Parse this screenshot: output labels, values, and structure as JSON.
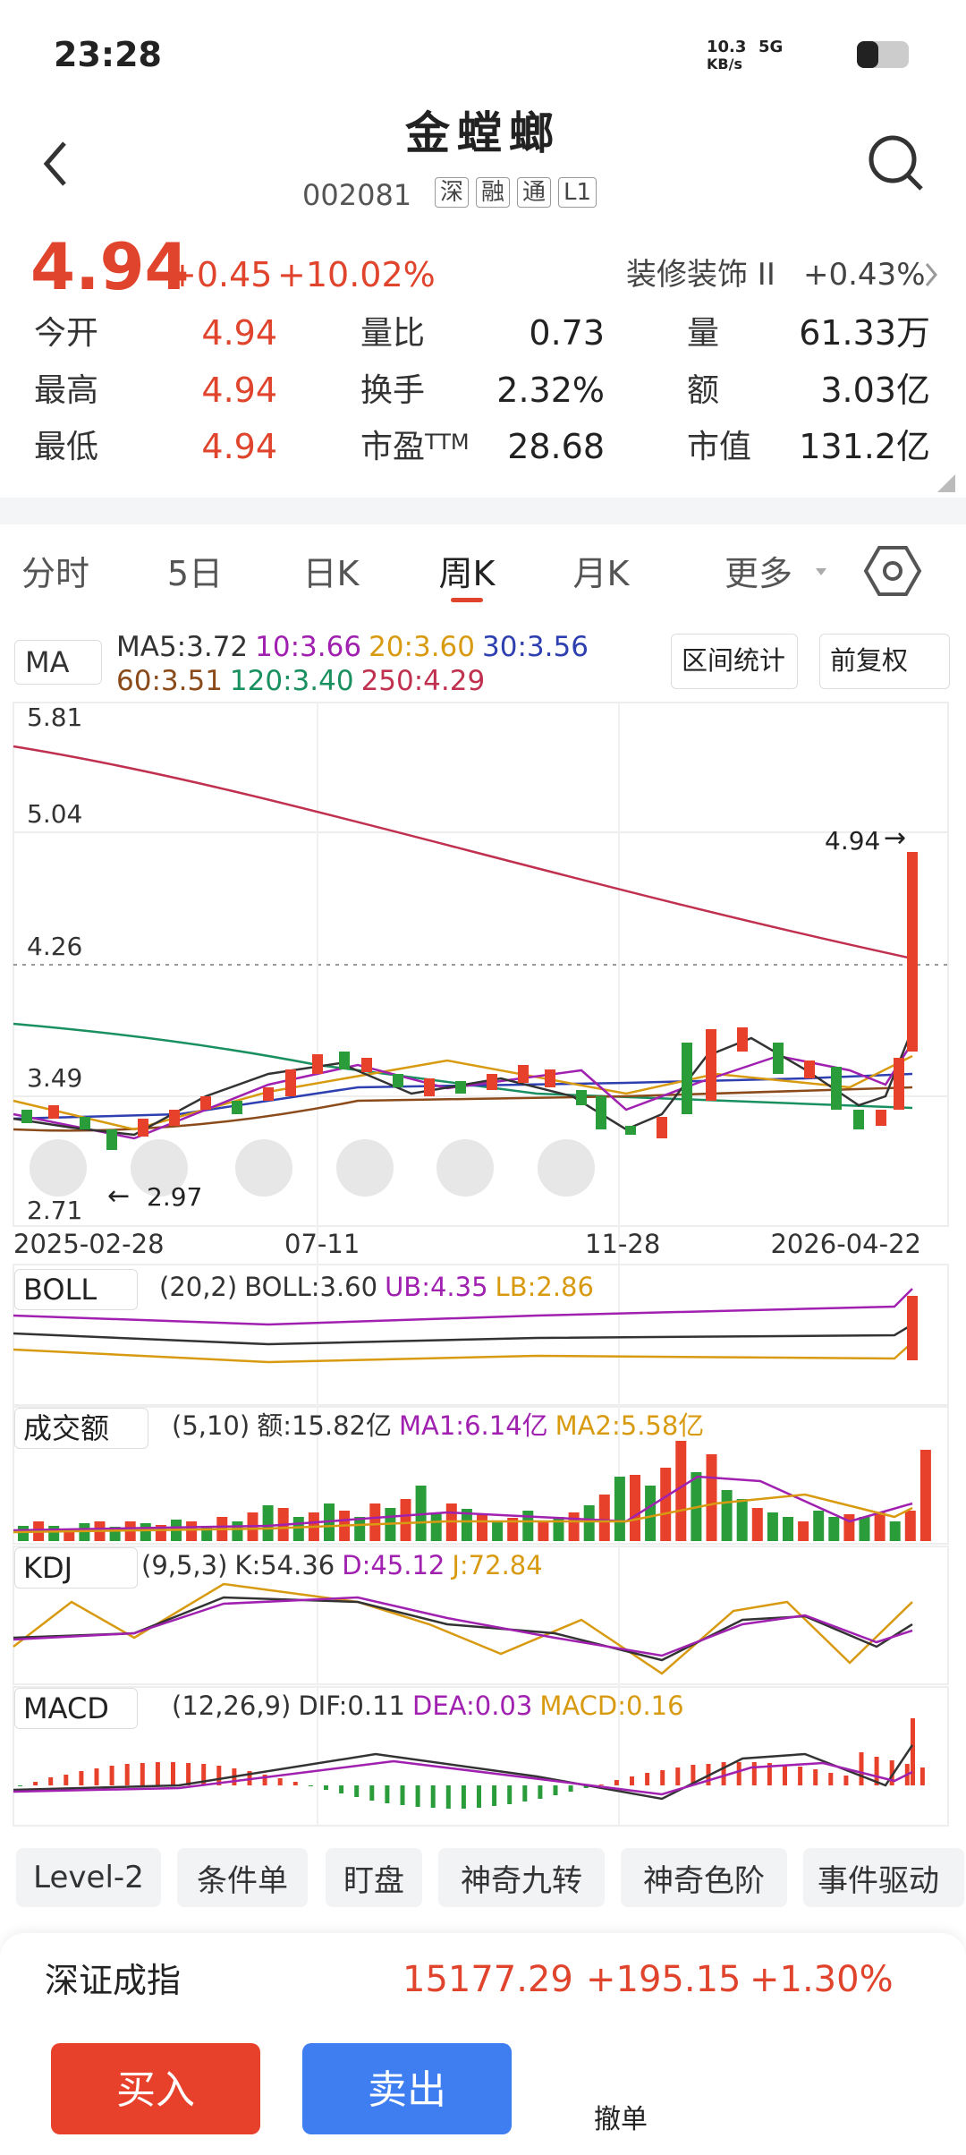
{
  "status": {
    "time": "23:28",
    "net_speed": "10.3",
    "net_unit": "KB/s",
    "signal": "5G"
  },
  "header": {
    "title": "金螳螂",
    "code": "002081",
    "tags": [
      "深",
      "融",
      "通",
      "L1"
    ]
  },
  "quote": {
    "price": "4.94",
    "change": "+0.45",
    "change_pct": "+10.02%",
    "sector": "装修装饰 II",
    "sector_change": "+0.43%",
    "stats": [
      {
        "label": "今开",
        "value": "4.94"
      },
      {
        "label": "量比",
        "value": "0.73"
      },
      {
        "label": "量",
        "value": "61.33万"
      },
      {
        "label": "最高",
        "value": "4.94"
      },
      {
        "label": "换手",
        "value": "2.32%"
      },
      {
        "label": "额",
        "value": "3.03亿"
      },
      {
        "label": "最低",
        "value": "4.94"
      },
      {
        "label": "市盈",
        "label_sup": "TTM",
        "value": "28.68"
      },
      {
        "label": "市值",
        "value": "131.2亿"
      }
    ]
  },
  "tabs": {
    "items": [
      "分时",
      "5日",
      "日K",
      "周K",
      "月K",
      "更多"
    ],
    "selected": 3
  },
  "ma": {
    "selector": "MA",
    "items": [
      {
        "text": "MA5:3.72",
        "color": "#333333"
      },
      {
        "text": "10:3.66",
        "color": "#a020b0"
      },
      {
        "text": "20:3.60",
        "color": "#d89a10"
      },
      {
        "text": "30:3.56",
        "color": "#2e3fb0"
      },
      {
        "text": "60:3.51",
        "color": "#8b4a1a"
      },
      {
        "text": "120:3.40",
        "color": "#1a9060"
      },
      {
        "text": "250:4.29",
        "color": "#c0304f"
      }
    ],
    "buttons": [
      "区间统计",
      "前复权"
    ]
  },
  "chart": {
    "y_labels": [
      "5.81",
      "5.04",
      "4.26",
      "3.49",
      "2.71"
    ],
    "x_labels": [
      "2025-02-28",
      "07-11",
      "11-28",
      "2026-04-22"
    ],
    "last_price": "4.94",
    "low_price": "2.97"
  },
  "indicators": [
    {
      "selector": "BOLL",
      "params": "(20,2)",
      "items": [
        {
          "text": "BOLL:3.60",
          "color": "#333333"
        },
        {
          "text": "UB:4.35",
          "color": "#a020b0"
        },
        {
          "text": "LB:2.86",
          "color": "#d89a10"
        }
      ]
    },
    {
      "selector": "成交额",
      "params": "(5,10)",
      "items": [
        {
          "text": "额:15.82亿",
          "color": "#333333"
        },
        {
          "text": "MA1:6.14亿",
          "color": "#a020b0"
        },
        {
          "text": "MA2:5.58亿",
          "color": "#d89a10"
        }
      ]
    },
    {
      "selector": "KDJ",
      "params": "(9,5,3)",
      "items": [
        {
          "text": "K:54.36",
          "color": "#333333"
        },
        {
          "text": "D:45.12",
          "color": "#a020b0"
        },
        {
          "text": "J:72.84",
          "color": "#d89a10"
        }
      ]
    },
    {
      "selector": "MACD",
      "params": "(12,26,9)",
      "items": [
        {
          "text": "DIF:0.11",
          "color": "#333333"
        },
        {
          "text": "DEA:0.03",
          "color": "#a020b0"
        },
        {
          "text": "MACD:0.16",
          "color": "#d89a10"
        }
      ]
    }
  ],
  "tools": [
    "Level-2",
    "条件单",
    "盯盘",
    "神奇九转",
    "神奇色阶",
    "事件驱动"
  ],
  "index": {
    "name": "深证成指",
    "value": "15177.29",
    "change": "+195.15",
    "change_pct": "+1.30%"
  },
  "actions": {
    "buy": "买入",
    "sell": "卖出",
    "cancel": "撤单"
  }
}
